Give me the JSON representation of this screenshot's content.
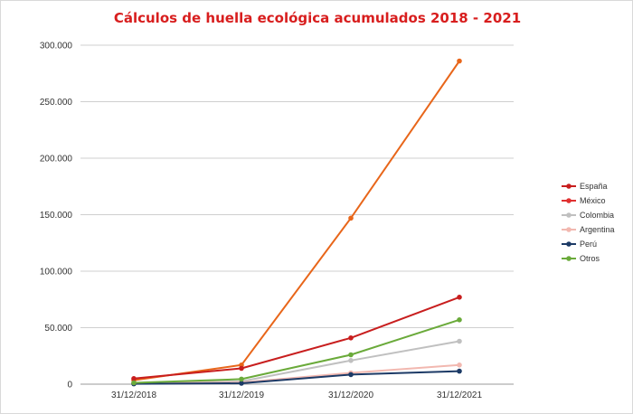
{
  "chart_data": {
    "type": "line",
    "title": "Cálculos de huella ecológica acumulados 2018 - 2021",
    "title_color": "#d81e1e",
    "xlabel": "",
    "ylabel": "",
    "categories": [
      "31/12/2018",
      "31/12/2019",
      "31/12/2020",
      "31/12/2021"
    ],
    "ylim": [
      0,
      300000
    ],
    "yticks": [
      0,
      50000,
      100000,
      150000,
      200000,
      250000,
      300000
    ],
    "ytick_labels": [
      "0",
      "50.000",
      "100.000",
      "150.000",
      "200.000",
      "250.000",
      "300.000"
    ],
    "grid": true,
    "legend_position": "right",
    "series": [
      {
        "name": "España",
        "color": "#e8661a",
        "legend_color": "#c81e1e",
        "values": [
          3500,
          17000,
          147000,
          286000
        ]
      },
      {
        "name": "México",
        "color": "#c81e1e",
        "legend_color": "#e03030",
        "values": [
          5000,
          14000,
          41000,
          77000
        ]
      },
      {
        "name": "Colombia",
        "color": "#c0c0c0",
        "legend_color": "#c0c0c0",
        "values": [
          1000,
          2500,
          21000,
          38000
        ]
      },
      {
        "name": "Argentina",
        "color": "#f2b8b0",
        "legend_color": "#f2b8b0",
        "values": [
          800,
          1500,
          10000,
          17000
        ]
      },
      {
        "name": "Perú",
        "color": "#1c3a66",
        "legend_color": "#1c3a66",
        "values": [
          300,
          800,
          8500,
          11500
        ]
      },
      {
        "name": "Otros",
        "color": "#6aaa3a",
        "legend_color": "#6aaa3a",
        "values": [
          1200,
          4500,
          26000,
          57000
        ]
      }
    ]
  }
}
